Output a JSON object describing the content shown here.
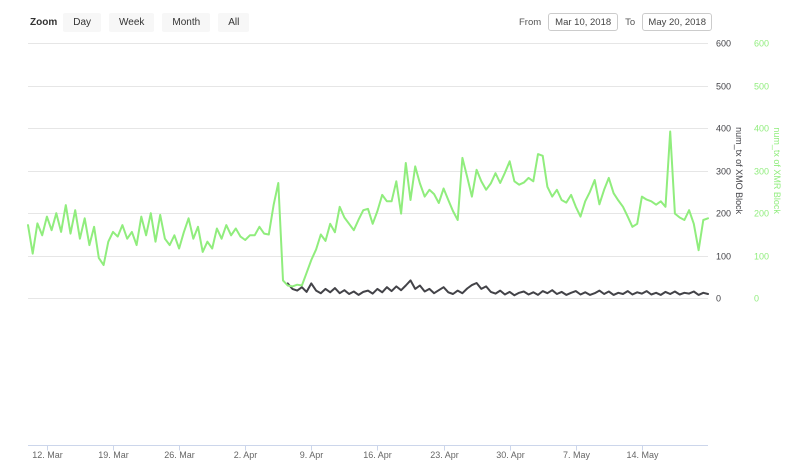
{
  "range_selector": {
    "zoom_label": "Zoom",
    "buttons": [
      {
        "label": "Day"
      },
      {
        "label": "Week"
      },
      {
        "label": "Month"
      },
      {
        "label": "All"
      }
    ],
    "from_label": "From",
    "from_value": "Mar 10, 2018",
    "to_label": "To",
    "to_value": "May 20, 2018"
  },
  "chart_data": {
    "type": "line",
    "title": "",
    "legend_position": "none",
    "grid": true,
    "x_axis": {
      "unit": "date",
      "start_date": "Mar 10, 2018",
      "end_date": "May 20, 2018",
      "range_days": [
        0,
        72
      ],
      "ticks": [
        {
          "day": 2,
          "label": "12. Mar"
        },
        {
          "day": 9,
          "label": "19. Mar"
        },
        {
          "day": 16,
          "label": "26. Mar"
        },
        {
          "day": 23,
          "label": "2. Apr"
        },
        {
          "day": 30,
          "label": "9. Apr"
        },
        {
          "day": 37,
          "label": "16. Apr"
        },
        {
          "day": 44,
          "label": "23. Apr"
        },
        {
          "day": 51,
          "label": "30. Apr"
        },
        {
          "day": 58,
          "label": "7. May"
        },
        {
          "day": 65,
          "label": "14. May"
        }
      ]
    },
    "y_axes": [
      {
        "title": "num_tx of XMO Block",
        "color": "#434348",
        "min": 0,
        "max": 600,
        "ticks": [
          0,
          100,
          200,
          300,
          400,
          500,
          600
        ]
      },
      {
        "title": "num_tx of XMR Block",
        "color": "#90ed7d",
        "min": 0,
        "max": 600,
        "ticks": [
          0,
          100,
          200,
          300,
          400,
          500,
          600
        ]
      }
    ],
    "colors": {
      "grid": "#e6e6e6",
      "axis_line": "#ccd6eb",
      "x_label": "#666666"
    },
    "series": [
      {
        "name": "num_tx of XMO Block",
        "color": "#434348",
        "start_day": 27.5,
        "step_days": 0.5,
        "values": [
          35,
          22,
          18,
          26,
          15,
          35,
          18,
          12,
          22,
          14,
          24,
          12,
          19,
          10,
          16,
          8,
          15,
          18,
          11,
          22,
          14,
          26,
          17,
          28,
          19,
          30,
          42,
          22,
          30,
          16,
          22,
          12,
          19,
          26,
          14,
          10,
          18,
          12,
          23,
          31,
          36,
          22,
          28,
          15,
          11,
          18,
          9,
          15,
          7,
          13,
          16,
          9,
          14,
          8,
          17,
          12,
          19,
          10,
          15,
          8,
          13,
          17,
          9,
          14,
          8,
          12,
          18,
          10,
          16,
          8,
          13,
          10,
          17,
          9,
          14,
          11,
          17,
          9,
          13,
          8,
          15,
          10,
          16,
          9,
          13,
          11,
          16,
          8,
          13,
          10
        ]
      },
      {
        "name": "num_tx of XMR Block",
        "color": "#90ed7d",
        "start_day": 0,
        "step_days": 0.5,
        "values": [
          172,
          105,
          176,
          148,
          192,
          160,
          200,
          156,
          219,
          152,
          207,
          140,
          188,
          125,
          168,
          95,
          78,
          133,
          156,
          145,
          172,
          140,
          156,
          125,
          192,
          148,
          200,
          133,
          196,
          140,
          125,
          148,
          117,
          155,
          188,
          140,
          168,
          109,
          133,
          117,
          164,
          140,
          172,
          148,
          164,
          145,
          137,
          148,
          148,
          168,
          152,
          150,
          219,
          271,
          42,
          30,
          28,
          32,
          30,
          60,
          90,
          115,
          150,
          135,
          175,
          155,
          215,
          190,
          175,
          160,
          185,
          207,
          210,
          175,
          205,
          243,
          228,
          228,
          275,
          199,
          318,
          231,
          310,
          270,
          239,
          255,
          245,
          224,
          258,
          231,
          205,
          184,
          330,
          285,
          239,
          302,
          275,
          255,
          270,
          294,
          271,
          295,
          322,
          275,
          267,
          272,
          283,
          275,
          339,
          335,
          262,
          239,
          255,
          231,
          225,
          243,
          215,
          192,
          228,
          250,
          278,
          221,
          255,
          283,
          247,
          230,
          215,
          192,
          168,
          175,
          239,
          232,
          228,
          220,
          228,
          215,
          392,
          199,
          190,
          184,
          207,
          175,
          113,
          184,
          188
        ]
      }
    ]
  }
}
